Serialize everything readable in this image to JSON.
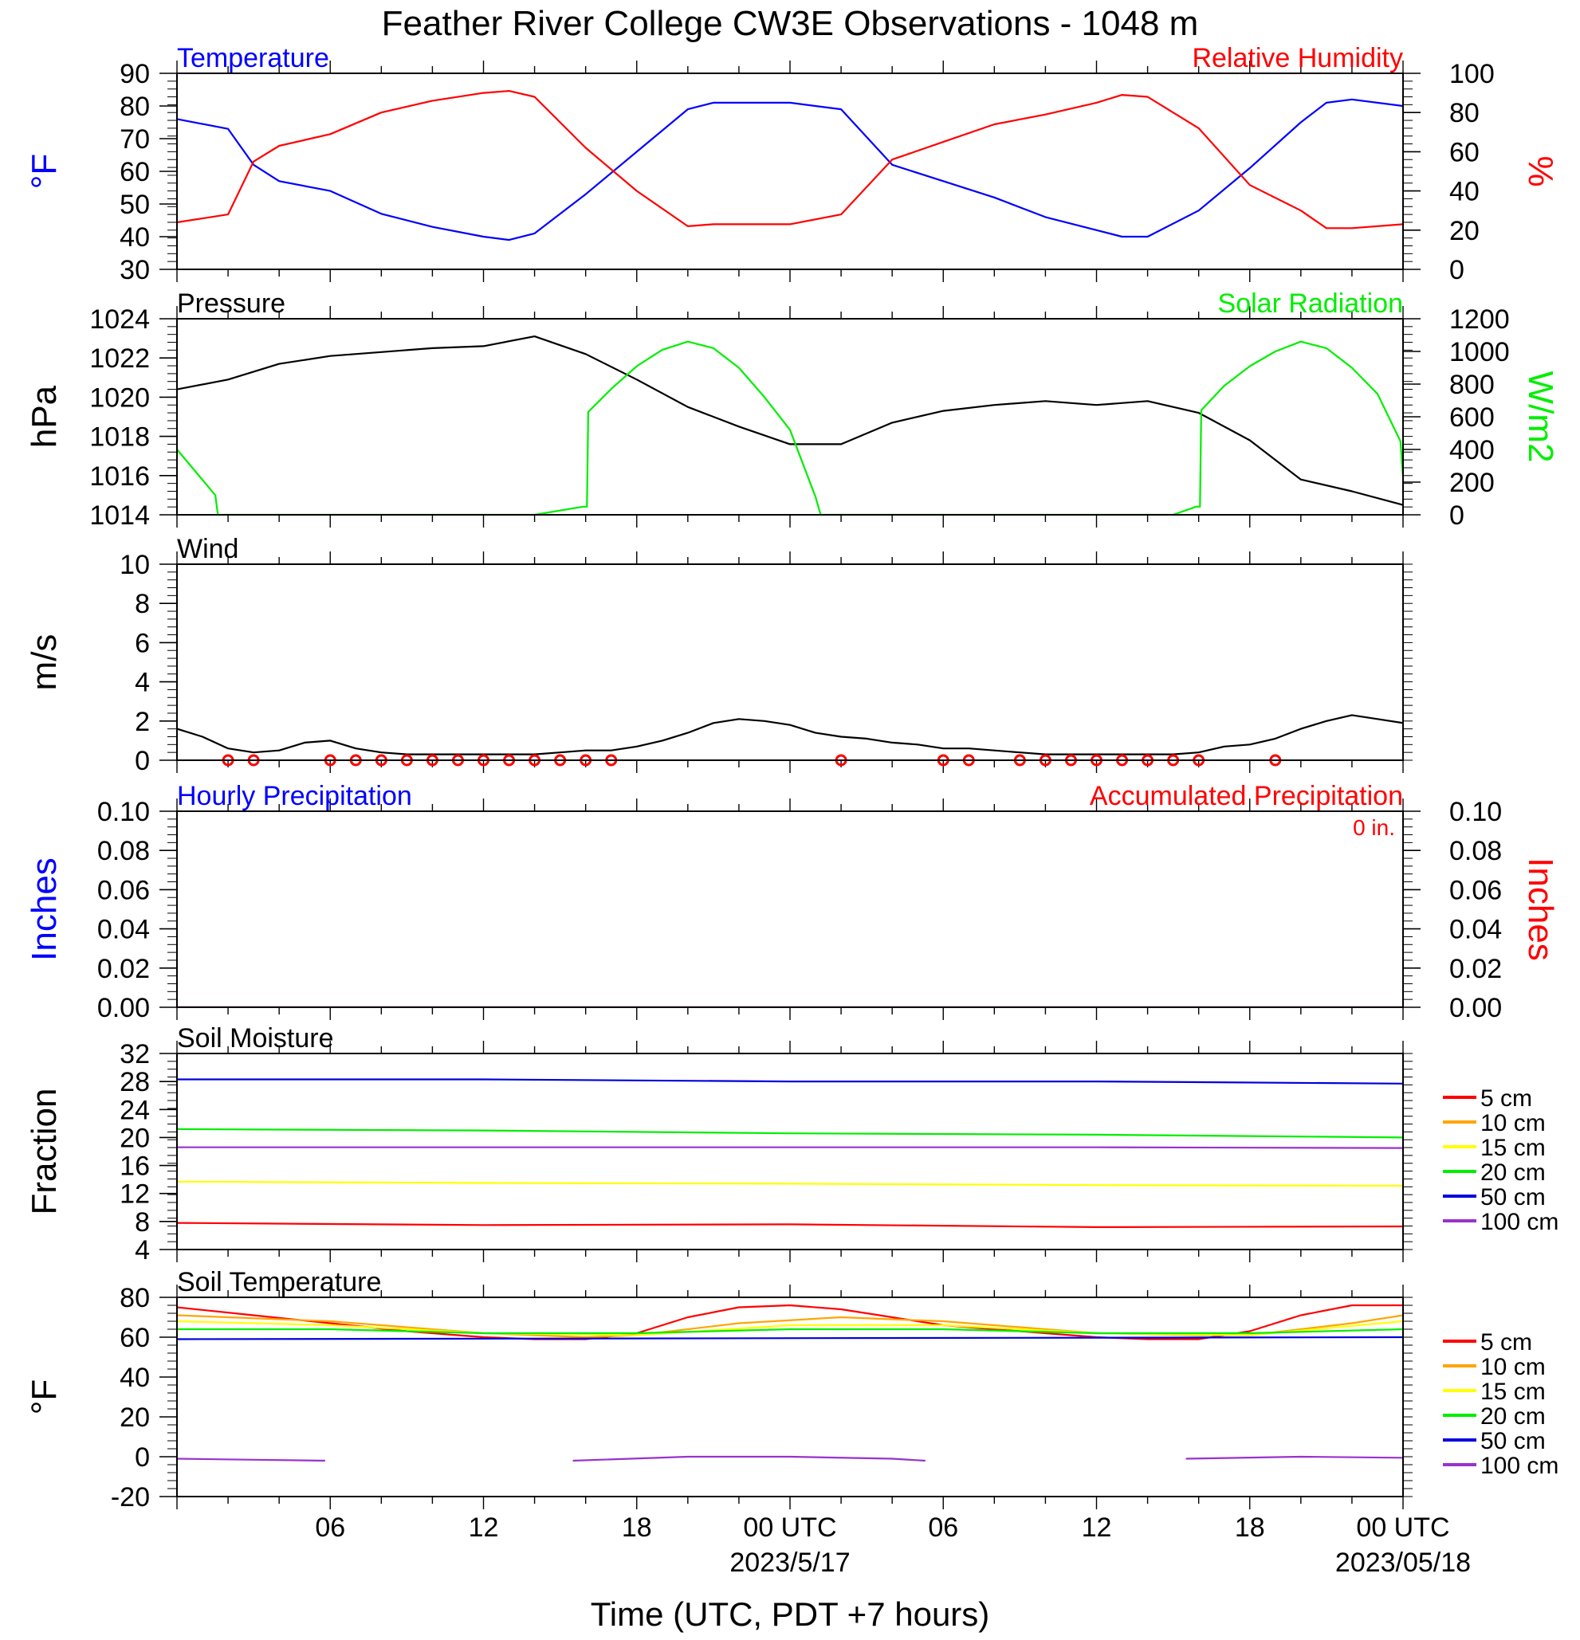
{
  "title": "Feather River College CW3E Observations - 1048 m",
  "xaxis": {
    "ticks": [
      {
        "hour": 6,
        "label": "06",
        "date": ""
      },
      {
        "hour": 12,
        "label": "12",
        "date": ""
      },
      {
        "hour": 18,
        "label": "18",
        "date": ""
      },
      {
        "hour": 24,
        "label": "00 UTC",
        "date": "2023/5/17"
      },
      {
        "hour": 30,
        "label": "06",
        "date": ""
      },
      {
        "hour": 36,
        "label": "12",
        "date": ""
      },
      {
        "hour": 42,
        "label": "18",
        "date": ""
      },
      {
        "hour": 48,
        "label": "00 UTC",
        "date": "2023/05/18"
      }
    ],
    "label": "Time (UTC, PDT +7 hours)",
    "range_hours": [
      0,
      48
    ]
  },
  "colors": {
    "blue": "#0000ff",
    "red": "#ff0000",
    "green": "#00ee00",
    "black": "#000000",
    "soil_5": "#ff0000",
    "soil_10": "#ffa500",
    "soil_15": "#ffff00",
    "soil_20": "#00ee00",
    "soil_50": "#0000dd",
    "soil_100": "#9932cc"
  },
  "chart_data": [
    {
      "type": "line",
      "title_left": "Temperature",
      "title_right": "Relative Humidity",
      "ylabel_left": "°F",
      "ylabel_right": "%",
      "ylim_left": [
        30,
        90
      ],
      "ylim_right": [
        0,
        100
      ],
      "yticks_left": [
        "90",
        "80",
        "70",
        "60",
        "50",
        "40",
        "30"
      ],
      "yticks_right": [
        "100",
        "80",
        "60",
        "40",
        "20",
        "0"
      ],
      "x": [
        0,
        2,
        3,
        4,
        6,
        8,
        10,
        12,
        13,
        14,
        16,
        18,
        20,
        21,
        22,
        24,
        26,
        28,
        30,
        32,
        34,
        36,
        37,
        38,
        40,
        42,
        44,
        45,
        46,
        48
      ],
      "series": [
        {
          "name": "Temperature",
          "axis": "left",
          "color": "blue",
          "values": [
            76,
            73,
            62,
            57,
            54,
            47,
            43,
            40,
            39,
            41,
            53,
            66,
            79,
            81,
            81,
            81,
            79,
            62,
            57,
            52,
            46,
            42,
            40,
            40,
            48,
            61,
            75,
            81,
            82,
            80
          ]
        },
        {
          "name": "Relative Humidity",
          "axis": "right",
          "color": "red",
          "values": [
            24,
            28,
            55,
            63,
            69,
            80,
            86,
            90,
            91,
            88,
            62,
            40,
            22,
            23,
            23,
            23,
            28,
            56,
            65,
            74,
            79,
            85,
            89,
            88,
            72,
            43,
            30,
            21,
            21,
            23
          ]
        }
      ]
    },
    {
      "type": "line",
      "title_left": "Pressure",
      "title_right": "Solar Radiation",
      "ylabel_left": "hPa",
      "ylabel_right": "W/m2",
      "ylim_left": [
        1014,
        1024
      ],
      "ylim_right": [
        0,
        1200
      ],
      "yticks_left": [
        "1024",
        "1022",
        "1020",
        "1018",
        "1016",
        "1014"
      ],
      "yticks_right": [
        "1200",
        "1000",
        "800",
        "600",
        "400",
        "200",
        "0"
      ],
      "series": [
        {
          "name": "Pressure",
          "axis": "left",
          "color": "black",
          "x": [
            0,
            2,
            4,
            6,
            8,
            10,
            12,
            14,
            16,
            18,
            20,
            22,
            24,
            26,
            28,
            30,
            32,
            34,
            36,
            38,
            40,
            42,
            44,
            46,
            48
          ],
          "values": [
            1020.4,
            1020.9,
            1021.7,
            1022.1,
            1022.3,
            1022.5,
            1022.6,
            1023.1,
            1022.2,
            1020.9,
            1019.5,
            1018.5,
            1017.6,
            1017.6,
            1018.7,
            1019.3,
            1019.6,
            1019.8,
            1019.6,
            1019.8,
            1019.2,
            1017.8,
            1015.8,
            1015.2,
            1014.5
          ]
        },
        {
          "name": "Solar Radiation",
          "axis": "right",
          "color": "green",
          "x": [
            0,
            1.5,
            1.6,
            11,
            14,
            15.9,
            16.05,
            16.1,
            17,
            18,
            19,
            20,
            21,
            22,
            23,
            24,
            25,
            25.2,
            36,
            39,
            39.9,
            40.05,
            40.1,
            41,
            42,
            43,
            44,
            45,
            46,
            47,
            47.9,
            48
          ],
          "values": [
            400,
            120,
            0,
            0,
            0,
            50,
            50,
            630,
            770,
            910,
            1010,
            1060,
            1020,
            900,
            720,
            520,
            110,
            0,
            0,
            0,
            50,
            50,
            640,
            790,
            910,
            1000,
            1060,
            1020,
            900,
            740,
            450,
            230
          ]
        }
      ]
    },
    {
      "type": "line",
      "title_left": "Wind",
      "ylabel_left": "m/s",
      "ylim_left": [
        0,
        10
      ],
      "yticks_left": [
        "10",
        "8",
        "6",
        "4",
        "2",
        "0"
      ],
      "series": [
        {
          "name": "Wind",
          "axis": "left",
          "color": "black",
          "x": [
            0,
            1,
            2,
            3,
            4,
            5,
            6,
            7,
            8,
            9,
            10,
            11,
            12,
            13,
            14,
            15,
            16,
            17,
            18,
            19,
            20,
            21,
            22,
            23,
            24,
            25,
            26,
            27,
            28,
            29,
            30,
            31,
            32,
            33,
            34,
            35,
            36,
            37,
            38,
            39,
            40,
            41,
            42,
            43,
            44,
            45,
            46,
            47,
            48
          ],
          "values": [
            1.6,
            1.2,
            0.6,
            0.4,
            0.5,
            0.9,
            1.0,
            0.6,
            0.4,
            0.3,
            0.3,
            0.3,
            0.3,
            0.3,
            0.3,
            0.4,
            0.5,
            0.5,
            0.7,
            1.0,
            1.4,
            1.9,
            2.1,
            2.0,
            1.8,
            1.4,
            1.2,
            1.1,
            0.9,
            0.8,
            0.6,
            0.6,
            0.5,
            0.4,
            0.3,
            0.3,
            0.3,
            0.3,
            0.3,
            0.3,
            0.4,
            0.7,
            0.8,
            1.1,
            1.6,
            2.0,
            2.3,
            2.1,
            1.9
          ]
        }
      ],
      "calm_markers_hours": [
        2,
        3,
        6,
        7,
        8,
        9,
        10,
        11,
        12,
        13,
        14,
        15,
        16,
        17,
        26,
        30,
        31,
        33,
        34,
        35,
        36,
        37,
        38,
        39,
        40,
        43
      ]
    },
    {
      "type": "line",
      "title_left": "Hourly Precipitation",
      "title_right": "Accumulated Precipitation",
      "annotation": "0 in.",
      "ylabel_left": "Inches",
      "ylabel_right": "Inches",
      "ylim_left": [
        0,
        0.1
      ],
      "ylim_right": [
        0,
        0.1
      ],
      "yticks_left": [
        "0.10",
        "0.08",
        "0.06",
        "0.04",
        "0.02",
        "0.00"
      ],
      "yticks_right": [
        "0.10",
        "0.08",
        "0.06",
        "0.04",
        "0.02",
        "0.00"
      ],
      "x": [
        0,
        48
      ],
      "series": [
        {
          "name": "Hourly Precipitation",
          "axis": "left",
          "color": "blue",
          "values": [
            0,
            0
          ]
        },
        {
          "name": "Accumulated Precipitation",
          "axis": "right",
          "color": "red",
          "values": [
            0,
            0
          ]
        }
      ]
    },
    {
      "type": "line",
      "title_left": "Soil Moisture",
      "ylabel_left": "Fraction",
      "ylim_left": [
        4,
        32
      ],
      "yticks_left": [
        "32",
        "28",
        "24",
        "20",
        "16",
        "12",
        "8",
        "4"
      ],
      "legend": [
        "5 cm",
        "10 cm",
        "15 cm",
        "20 cm",
        "50 cm",
        "100 cm"
      ],
      "x": [
        0,
        12,
        24,
        36,
        48
      ],
      "series": [
        {
          "name": "5 cm",
          "color": "soil_5",
          "values": [
            7.8,
            7.5,
            7.6,
            7.2,
            7.3
          ]
        },
        {
          "name": "15 cm",
          "color": "soil_15",
          "values": [
            13.7,
            13.5,
            13.4,
            13.2,
            13.1
          ]
        },
        {
          "name": "20 cm",
          "color": "soil_20",
          "values": [
            21.2,
            21.0,
            20.6,
            20.4,
            20.0
          ]
        },
        {
          "name": "50 cm",
          "color": "soil_50",
          "values": [
            28.3,
            28.3,
            28.0,
            28.0,
            27.7
          ]
        },
        {
          "name": "100 cm",
          "color": "soil_100",
          "values": [
            18.6,
            18.6,
            18.6,
            18.6,
            18.5
          ]
        }
      ]
    },
    {
      "type": "line",
      "title_left": "Soil Temperature",
      "ylabel_left": "°F",
      "ylim_left": [
        -20,
        80
      ],
      "yticks_left": [
        "80",
        "60",
        "40",
        "20",
        "0",
        "-20"
      ],
      "legend": [
        "5 cm",
        "10 cm",
        "15 cm",
        "20 cm",
        "50 cm",
        "100 cm"
      ],
      "series": [
        {
          "name": "5 cm",
          "color": "soil_5",
          "x": [
            0,
            3,
            6,
            9,
            12,
            14,
            16,
            18,
            20,
            22,
            24,
            26,
            28,
            30,
            33,
            36,
            38,
            40,
            42,
            44,
            46,
            48
          ],
          "values": [
            75,
            71,
            67,
            63,
            60,
            59,
            59,
            62,
            70,
            75,
            76,
            74,
            70,
            66,
            63,
            60,
            59,
            59,
            63,
            71,
            76,
            76
          ]
        },
        {
          "name": "10 cm",
          "color": "soil_10",
          "x": [
            0,
            6,
            12,
            16,
            18,
            22,
            26,
            30,
            36,
            40,
            42,
            46,
            48
          ],
          "values": [
            71,
            68,
            62,
            60,
            61,
            67,
            70,
            68,
            62,
            61,
            61,
            67,
            71
          ]
        },
        {
          "name": "15 cm",
          "color": "soil_15",
          "x": [
            0,
            6,
            12,
            18,
            24,
            30,
            36,
            42,
            48
          ],
          "values": [
            68,
            66,
            62,
            61,
            66,
            66,
            62,
            61,
            68
          ]
        },
        {
          "name": "20 cm",
          "color": "soil_20",
          "x": [
            0,
            6,
            12,
            18,
            24,
            30,
            36,
            42,
            48
          ],
          "values": [
            64,
            64,
            62,
            62,
            64,
            64,
            62,
            62,
            64
          ]
        },
        {
          "name": "50 cm",
          "color": "soil_50",
          "x": [
            0,
            48
          ],
          "values": [
            59,
            60
          ]
        },
        {
          "name": "100 cm",
          "color": "soil_100",
          "segments": [
            {
              "x": [
                0,
                3,
                5.8
              ],
              "values": [
                -1,
                -1.5,
                -2
              ]
            },
            {
              "x": [
                15.5,
                20,
                24,
                28,
                29.3
              ],
              "values": [
                -2,
                0,
                0,
                -1,
                -2
              ]
            },
            {
              "x": [
                39.5,
                44,
                48
              ],
              "values": [
                -1,
                0,
                -0.5
              ]
            }
          ]
        }
      ]
    }
  ]
}
